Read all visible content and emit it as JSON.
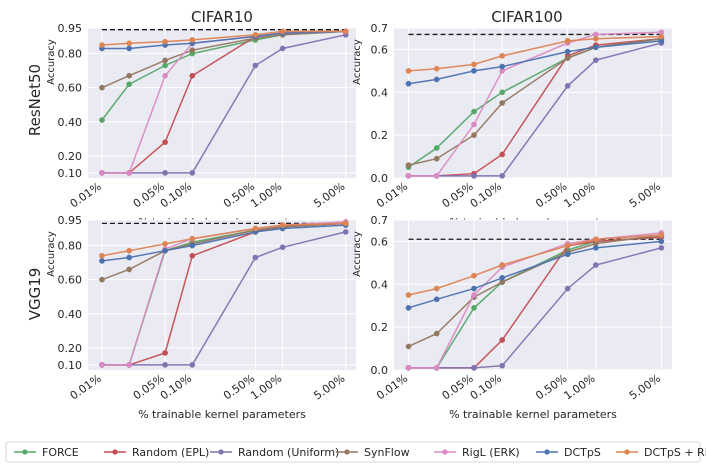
{
  "chart_data": {
    "type": "line",
    "xlabel": "% trainable kernel parameters",
    "ylabel": "Accuracy",
    "x_positions": [
      0.01,
      0.02,
      0.05,
      0.1,
      0.5,
      1.0,
      5.0
    ],
    "x_tick_values": [
      0.01,
      0.05,
      0.1,
      0.5,
      1.0,
      5.0
    ],
    "x_tick_labels": [
      "0.01%",
      "0.05%",
      "0.10%",
      "0.50%",
      "1.00%",
      "5.00%"
    ],
    "columns": [
      "CIFAR10",
      "CIFAR100"
    ],
    "rows": [
      "ResNet50",
      "VGG19"
    ],
    "legend_labels": [
      "FORCE",
      "Random (EPL)",
      "Random (Uniform)",
      "SynFlow",
      "RigL (ERK)",
      "DCTpS",
      "DCTpS + RigL"
    ],
    "colors": {
      "FORCE": "#55a868",
      "Random (EPL)": "#c44e52",
      "Random (Uniform)": "#8172b2",
      "SynFlow": "#937860",
      "RigL (ERK)": "#da8bc3",
      "DCTpS": "#4c72b0",
      "DCTpS + RigL": "#dd8452",
      "background": "#eaeaf2",
      "grid": "#ffffff"
    },
    "panels": [
      {
        "row": "ResNet50",
        "column": "CIFAR10",
        "ylim": [
          0.07,
          0.95
        ],
        "yticks": [
          0.1,
          0.2,
          0.4,
          0.6,
          0.8,
          0.95
        ],
        "ytick_labels": [
          "0.10",
          "0.20",
          "0.40",
          "0.60",
          "0.80",
          "0.95"
        ],
        "dense_baseline": 0.94,
        "series": [
          {
            "name": "FORCE",
            "values": [
              0.41,
              0.62,
              0.73,
              0.8,
              0.88,
              0.91,
              0.93
            ]
          },
          {
            "name": "Random (EPL)",
            "values": [
              0.1,
              0.1,
              0.28,
              0.67,
              0.9,
              0.92,
              0.93
            ]
          },
          {
            "name": "Random (Uniform)",
            "values": [
              0.1,
              0.1,
              0.1,
              0.1,
              0.73,
              0.83,
              0.91
            ]
          },
          {
            "name": "SynFlow",
            "values": [
              0.6,
              0.67,
              0.76,
              0.82,
              0.89,
              0.91,
              0.93
            ]
          },
          {
            "name": "RigL (ERK)",
            "values": [
              0.1,
              0.1,
              0.67,
              0.86,
              0.9,
              0.92,
              0.93
            ]
          },
          {
            "name": "DCTpS",
            "values": [
              0.83,
              0.83,
              0.85,
              0.86,
              0.9,
              0.92,
              0.93
            ]
          },
          {
            "name": "DCTpS + RigL",
            "values": [
              0.85,
              0.86,
              0.87,
              0.88,
              0.91,
              0.93,
              0.93
            ]
          }
        ]
      },
      {
        "row": "ResNet50",
        "column": "CIFAR100",
        "ylim": [
          0.0,
          0.7
        ],
        "yticks": [
          0.0,
          0.2,
          0.4,
          0.6,
          0.7
        ],
        "ytick_labels": [
          "0.0",
          "0.2",
          "0.4",
          "0.6",
          "0.7"
        ],
        "dense_baseline": 0.67,
        "series": [
          {
            "name": "FORCE",
            "values": [
              0.05,
              0.14,
              0.31,
              0.4,
              0.56,
              0.61,
              0.65
            ]
          },
          {
            "name": "Random (EPL)",
            "values": [
              0.01,
              0.01,
              0.02,
              0.11,
              0.57,
              0.62,
              0.65
            ]
          },
          {
            "name": "Random (Uniform)",
            "values": [
              0.01,
              0.01,
              0.01,
              0.01,
              0.43,
              0.55,
              0.63
            ]
          },
          {
            "name": "SynFlow",
            "values": [
              0.06,
              0.09,
              0.2,
              0.35,
              0.56,
              0.61,
              0.65
            ]
          },
          {
            "name": "RigL (ERK)",
            "values": [
              0.01,
              0.01,
              0.25,
              0.5,
              0.63,
              0.67,
              0.68
            ]
          },
          {
            "name": "DCTpS",
            "values": [
              0.44,
              0.46,
              0.5,
              0.52,
              0.59,
              0.61,
              0.64
            ]
          },
          {
            "name": "DCTpS + RigL",
            "values": [
              0.5,
              0.51,
              0.53,
              0.57,
              0.64,
              0.65,
              0.66
            ]
          }
        ]
      },
      {
        "row": "VGG19",
        "column": "CIFAR10",
        "ylim": [
          0.07,
          0.95
        ],
        "yticks": [
          0.1,
          0.2,
          0.4,
          0.6,
          0.8,
          0.95
        ],
        "ytick_labels": [
          "0.10",
          "0.20",
          "0.40",
          "0.60",
          "0.80",
          "0.95"
        ],
        "dense_baseline": 0.93,
        "series": [
          {
            "name": "FORCE",
            "values": [
              0.1,
              0.1,
              0.77,
              0.82,
              0.89,
              0.91,
              0.93
            ]
          },
          {
            "name": "Random (EPL)",
            "values": [
              0.1,
              0.1,
              0.17,
              0.74,
              0.88,
              0.91,
              0.93
            ]
          },
          {
            "name": "Random (Uniform)",
            "values": [
              0.1,
              0.1,
              0.1,
              0.1,
              0.73,
              0.79,
              0.88
            ]
          },
          {
            "name": "SynFlow",
            "values": [
              0.6,
              0.66,
              0.77,
              0.81,
              0.89,
              0.91,
              0.93
            ]
          },
          {
            "name": "RigL (ERK)",
            "values": [
              0.1,
              0.1,
              0.78,
              0.84,
              0.9,
              0.92,
              0.94
            ]
          },
          {
            "name": "DCTpS",
            "values": [
              0.71,
              0.73,
              0.77,
              0.8,
              0.88,
              0.9,
              0.92
            ]
          },
          {
            "name": "DCTpS + RigL",
            "values": [
              0.74,
              0.77,
              0.81,
              0.84,
              0.9,
              0.92,
              0.93
            ]
          }
        ]
      },
      {
        "row": "VGG19",
        "column": "CIFAR100",
        "ylim": [
          0.0,
          0.7
        ],
        "yticks": [
          0.0,
          0.2,
          0.4,
          0.6,
          0.7
        ],
        "ytick_labels": [
          "0.0",
          "0.2",
          "0.4",
          "0.6",
          "0.7"
        ],
        "dense_baseline": 0.61,
        "series": [
          {
            "name": "FORCE",
            "values": [
              0.01,
              0.01,
              0.29,
              0.41,
              0.56,
              0.6,
              0.62
            ]
          },
          {
            "name": "Random (EPL)",
            "values": [
              0.01,
              0.01,
              0.01,
              0.14,
              0.58,
              0.6,
              0.62
            ]
          },
          {
            "name": "Random (Uniform)",
            "values": [
              0.01,
              0.01,
              0.01,
              0.02,
              0.38,
              0.49,
              0.57
            ]
          },
          {
            "name": "SynFlow",
            "values": [
              0.11,
              0.17,
              0.34,
              0.41,
              0.55,
              0.59,
              0.63
            ]
          },
          {
            "name": "RigL (ERK)",
            "values": [
              0.01,
              0.01,
              0.35,
              0.48,
              0.59,
              0.61,
              0.64
            ]
          },
          {
            "name": "DCTpS",
            "values": [
              0.29,
              0.33,
              0.38,
              0.43,
              0.54,
              0.57,
              0.6
            ]
          },
          {
            "name": "DCTpS + RigL",
            "values": [
              0.35,
              0.38,
              0.44,
              0.49,
              0.58,
              0.61,
              0.63
            ]
          }
        ]
      }
    ]
  }
}
